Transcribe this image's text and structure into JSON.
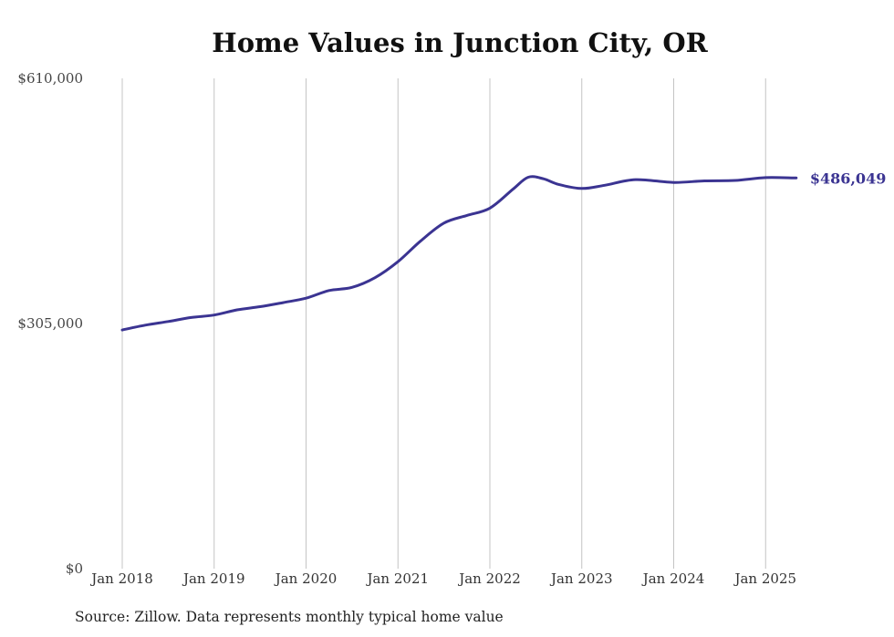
{
  "chart_data": {
    "type": "line",
    "title": "Home Values in Junction City, OR",
    "source": "Source: Zillow. Data represents monthly typical home value",
    "xlabel": "",
    "ylabel": "",
    "ylim": [
      0,
      610000
    ],
    "y_ticks": [
      {
        "value": 0,
        "label": "$0"
      },
      {
        "value": 305000,
        "label": "$305,000"
      },
      {
        "value": 610000,
        "label": "$610,000"
      }
    ],
    "x_ticks": [
      {
        "date": "2018-01",
        "label": "Jan 2018"
      },
      {
        "date": "2019-01",
        "label": "Jan 2019"
      },
      {
        "date": "2020-01",
        "label": "Jan 2020"
      },
      {
        "date": "2021-01",
        "label": "Jan 2021"
      },
      {
        "date": "2022-01",
        "label": "Jan 2022"
      },
      {
        "date": "2023-01",
        "label": "Jan 2023"
      },
      {
        "date": "2024-01",
        "label": "Jan 2024"
      },
      {
        "date": "2025-01",
        "label": "Jan 2025"
      }
    ],
    "x_range": [
      "2018-01",
      "2025-05"
    ],
    "grid": "vertical",
    "line_color": "#3b3492",
    "end_label": "$486,049",
    "series": [
      {
        "values": [
          [
            "2018-01",
            297000
          ],
          [
            "2018-04",
            303000
          ],
          [
            "2018-07",
            307500
          ],
          [
            "2018-10",
            312500
          ],
          [
            "2019-01",
            315500
          ],
          [
            "2019-04",
            322000
          ],
          [
            "2019-07",
            326000
          ],
          [
            "2019-10",
            331000
          ],
          [
            "2020-01",
            336500
          ],
          [
            "2020-04",
            346000
          ],
          [
            "2020-07",
            350000
          ],
          [
            "2020-10",
            362000
          ],
          [
            "2021-01",
            382000
          ],
          [
            "2021-04",
            408000
          ],
          [
            "2021-07",
            430000
          ],
          [
            "2021-10",
            439500
          ],
          [
            "2022-01",
            448500
          ],
          [
            "2022-04",
            472000
          ],
          [
            "2022-06",
            487000
          ],
          [
            "2022-08",
            485000
          ],
          [
            "2022-10",
            478000
          ],
          [
            "2023-01",
            473000
          ],
          [
            "2023-04",
            477000
          ],
          [
            "2023-08",
            484000
          ],
          [
            "2024-01",
            480500
          ],
          [
            "2024-05",
            482500
          ],
          [
            "2024-09",
            483000
          ],
          [
            "2025-01",
            486500
          ],
          [
            "2025-05",
            486049
          ]
        ]
      }
    ]
  }
}
